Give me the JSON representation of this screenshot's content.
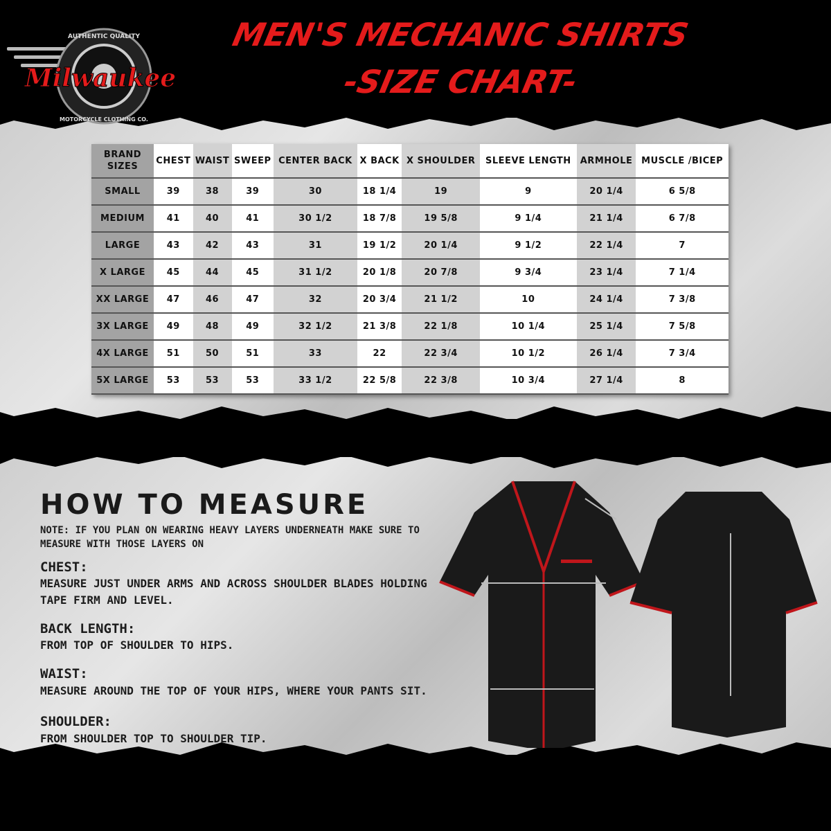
{
  "header": {
    "title_line1": "MEN'S MECHANIC SHIRTS",
    "title_line2": "-SIZE CHART-",
    "logo_text": "Milwaukee",
    "logo_top": "AUTHENTIC QUALITY",
    "logo_bottom": "MOTORCYCLE CLOTHING CO."
  },
  "colors": {
    "title_red": "#e41b1b",
    "shirt": "#1a1a1a",
    "trim": "#c0161b"
  },
  "table": {
    "headers": [
      "BRAND SIZES",
      "CHEST",
      "WAIST",
      "SWEEP",
      "CENTER BACK",
      "X BACK",
      "X SHOULDER",
      "SLEEVE LENGTH",
      "ARMHOLE",
      "MUSCLE /BICEP"
    ],
    "rows": [
      [
        "SMALL",
        "39",
        "38",
        "39",
        "30",
        "18 1/4",
        "19",
        "9",
        "20 1/4",
        "6 5/8"
      ],
      [
        "MEDIUM",
        "41",
        "40",
        "41",
        "30 1/2",
        "18 7/8",
        "19 5/8",
        "9 1/4",
        "21 1/4",
        "6 7/8"
      ],
      [
        "LARGE",
        "43",
        "42",
        "43",
        "31",
        "19 1/2",
        "20 1/4",
        "9 1/2",
        "22 1/4",
        "7"
      ],
      [
        "X LARGE",
        "45",
        "44",
        "45",
        "31 1/2",
        "20 1/8",
        "20 7/8",
        "9 3/4",
        "23 1/4",
        "7 1/4"
      ],
      [
        "XX LARGE",
        "47",
        "46",
        "47",
        "32",
        "20 3/4",
        "21 1/2",
        "10",
        "24 1/4",
        "7 3/8"
      ],
      [
        "3X LARGE",
        "49",
        "48",
        "49",
        "32 1/2",
        "21 3/8",
        "22 1/8",
        "10 1/4",
        "25 1/4",
        "7 5/8"
      ],
      [
        "4X LARGE",
        "51",
        "50",
        "51",
        "33",
        "22",
        "22 3/4",
        "10 1/2",
        "26 1/4",
        "7 3/4"
      ],
      [
        "5X LARGE",
        "53",
        "53",
        "53",
        "33 1/2",
        "22 5/8",
        "22 3/8",
        "10 3/4",
        "27 1/4",
        "8"
      ]
    ]
  },
  "measure": {
    "title": "HOW TO MEASURE",
    "note": "NOTE: IF YOU PLAN ON WEARING HEAVY LAYERS UNDERNEATH MAKE SURE TO MEASURE WITH THOSE LAYERS ON",
    "items": [
      {
        "heading": "CHEST:",
        "text": "MEASURE JUST UNDER ARMS AND ACROSS SHOULDER BLADES HOLDING TAPE FIRM AND LEVEL."
      },
      {
        "heading": "BACK LENGTH:",
        "text": "FROM TOP OF SHOULDER TO HIPS."
      },
      {
        "heading": "WAIST:",
        "text": "MEASURE AROUND THE TOP OF YOUR HIPS, WHERE YOUR PANTS SIT."
      },
      {
        "heading": "SHOULDER:",
        "text": "FROM SHOULDER TOP TO SHOULDER TIP."
      }
    ]
  }
}
